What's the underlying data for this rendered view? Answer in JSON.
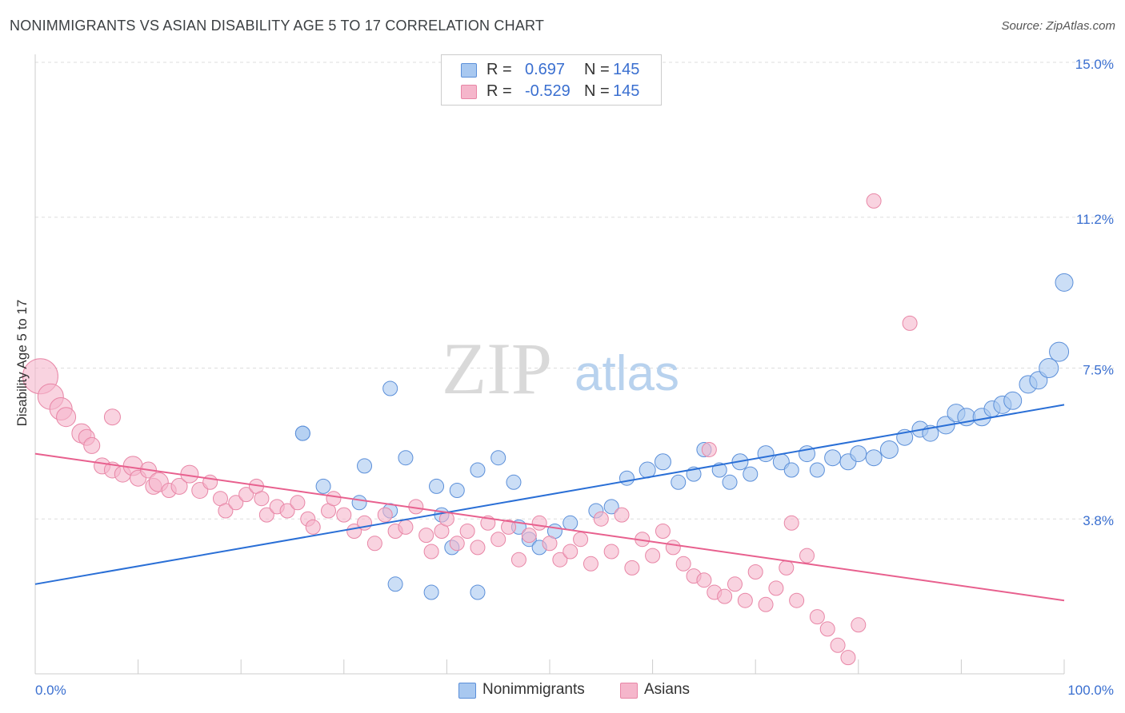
{
  "title": "NONIMMIGRANTS VS ASIAN DISABILITY AGE 5 TO 17 CORRELATION CHART",
  "source": "Source: ZipAtlas.com",
  "watermark": {
    "zip": "ZIP",
    "atlas": "atlas"
  },
  "colors": {
    "blue_fill": "#a8c8f0",
    "blue_stroke": "#5b8fd9",
    "blue_line": "#2a6fd6",
    "pink_fill": "#f5b6cb",
    "pink_stroke": "#e886a6",
    "pink_line": "#e8608e",
    "value_text": "#3a6fd0",
    "grid": "#dddddd"
  },
  "stats": [
    {
      "label": "R =",
      "r": "0.697",
      "n_label": "N =",
      "n": "145",
      "color": "#a8c8f0",
      "border": "#5b8fd9"
    },
    {
      "label": "R =",
      "r": "-0.529",
      "n_label": "N =",
      "n": "145",
      "color": "#f5b6cb",
      "border": "#e886a6"
    }
  ],
  "legend": [
    {
      "label": "Nonimmigrants",
      "color": "#a8c8f0",
      "border": "#5b8fd9"
    },
    {
      "label": "Asians",
      "color": "#f5b6cb",
      "border": "#e886a6"
    }
  ],
  "chart_data": {
    "type": "scatter",
    "title": "NONIMMIGRANTS VS ASIAN DISABILITY AGE 5 TO 17 CORRELATION CHART",
    "xlabel": "",
    "ylabel": "Disability Age 5 to 17",
    "xlim": [
      0,
      100
    ],
    "ylim": [
      0,
      15.0
    ],
    "x_tick_labels": [
      "0.0%",
      "100.0%"
    ],
    "y_ticks": [
      3.8,
      7.5,
      11.2,
      15.0
    ],
    "y_tick_labels": [
      "3.8%",
      "7.5%",
      "11.2%",
      "15.0%"
    ],
    "grid": true,
    "legend_position": "bottom-center",
    "series": [
      {
        "name": "Nonimmigrants",
        "trend": [
          [
            0,
            2.2
          ],
          [
            100,
            6.6
          ]
        ],
        "points": [
          [
            26,
            5.9,
            9
          ],
          [
            26,
            5.9,
            9
          ],
          [
            40.5,
            3.1,
            9
          ],
          [
            34.5,
            4.0,
            9
          ],
          [
            28,
            4.6,
            9
          ],
          [
            31.5,
            4.2,
            9
          ],
          [
            32,
            5.1,
            9
          ],
          [
            34.5,
            7.0,
            9
          ],
          [
            39.5,
            3.9,
            9
          ],
          [
            38.5,
            2.0,
            9
          ],
          [
            43,
            2.0,
            9
          ],
          [
            35,
            2.2,
            9
          ],
          [
            39,
            4.6,
            9
          ],
          [
            36,
            5.3,
            9
          ],
          [
            41,
            4.5,
            9
          ],
          [
            43,
            5.0,
            9
          ],
          [
            45,
            5.3,
            9
          ],
          [
            46.5,
            4.7,
            9
          ],
          [
            47,
            3.6,
            9
          ],
          [
            48,
            3.3,
            9
          ],
          [
            49,
            3.1,
            9
          ],
          [
            50.5,
            3.5,
            9
          ],
          [
            52,
            3.7,
            9
          ],
          [
            54.5,
            4.0,
            9
          ],
          [
            56,
            4.1,
            9
          ],
          [
            57.5,
            4.8,
            9
          ],
          [
            59.5,
            5.0,
            10
          ],
          [
            61,
            5.2,
            10
          ],
          [
            62.5,
            4.7,
            9
          ],
          [
            64,
            4.9,
            9
          ],
          [
            65,
            5.5,
            9
          ],
          [
            66.5,
            5.0,
            9
          ],
          [
            67.5,
            4.7,
            9
          ],
          [
            68.5,
            5.2,
            10
          ],
          [
            69.5,
            4.9,
            9
          ],
          [
            71,
            5.4,
            10
          ],
          [
            72.5,
            5.2,
            10
          ],
          [
            73.5,
            5.0,
            9
          ],
          [
            75,
            5.4,
            10
          ],
          [
            76,
            5.0,
            9
          ],
          [
            77.5,
            5.3,
            10
          ],
          [
            79,
            5.2,
            10
          ],
          [
            80,
            5.4,
            10
          ],
          [
            81.5,
            5.3,
            10
          ],
          [
            83,
            5.5,
            11
          ],
          [
            84.5,
            5.8,
            10
          ],
          [
            86,
            6.0,
            10
          ],
          [
            87,
            5.9,
            10
          ],
          [
            88.5,
            6.1,
            11
          ],
          [
            89.5,
            6.4,
            11
          ],
          [
            90.5,
            6.3,
            11
          ],
          [
            92,
            6.3,
            11
          ],
          [
            93,
            6.5,
            10
          ],
          [
            94,
            6.6,
            11
          ],
          [
            95,
            6.7,
            11
          ],
          [
            96.5,
            7.1,
            11
          ],
          [
            97.5,
            7.2,
            11
          ],
          [
            98.5,
            7.5,
            12
          ],
          [
            99.5,
            7.9,
            12
          ],
          [
            100,
            9.6,
            11
          ]
        ]
      },
      {
        "name": "Asians",
        "trend": [
          [
            0,
            5.4
          ],
          [
            100,
            1.8
          ]
        ],
        "points": [
          [
            0.5,
            7.3,
            22
          ],
          [
            1.5,
            6.8,
            16
          ],
          [
            2.5,
            6.5,
            14
          ],
          [
            3,
            6.3,
            12
          ],
          [
            4.5,
            5.9,
            12
          ],
          [
            5,
            5.8,
            10
          ],
          [
            5.5,
            5.6,
            10
          ],
          [
            7.5,
            6.3,
            10
          ],
          [
            6.5,
            5.1,
            10
          ],
          [
            7.5,
            5.0,
            10
          ],
          [
            8.5,
            4.9,
            10
          ],
          [
            9.5,
            5.1,
            12
          ],
          [
            10,
            4.8,
            10
          ],
          [
            11,
            5.0,
            10
          ],
          [
            11.5,
            4.6,
            10
          ],
          [
            12,
            4.7,
            12
          ],
          [
            13,
            4.5,
            9
          ],
          [
            14,
            4.6,
            10
          ],
          [
            15,
            4.9,
            11
          ],
          [
            16,
            4.5,
            10
          ],
          [
            17,
            4.7,
            9
          ],
          [
            18,
            4.3,
            9
          ],
          [
            18.5,
            4.0,
            9
          ],
          [
            19.5,
            4.2,
            9
          ],
          [
            20.5,
            4.4,
            9
          ],
          [
            21.5,
            4.6,
            9
          ],
          [
            22,
            4.3,
            9
          ],
          [
            22.5,
            3.9,
            9
          ],
          [
            23.5,
            4.1,
            9
          ],
          [
            24.5,
            4.0,
            9
          ],
          [
            25.5,
            4.2,
            9
          ],
          [
            26.5,
            3.8,
            9
          ],
          [
            27,
            3.6,
            9
          ],
          [
            28.5,
            4.0,
            9
          ],
          [
            29,
            4.3,
            9
          ],
          [
            30,
            3.9,
            9
          ],
          [
            31,
            3.5,
            9
          ],
          [
            32,
            3.7,
            9
          ],
          [
            33,
            3.2,
            9
          ],
          [
            34,
            3.9,
            9
          ],
          [
            35,
            3.5,
            9
          ],
          [
            36,
            3.6,
            9
          ],
          [
            37,
            4.1,
            9
          ],
          [
            38,
            3.4,
            9
          ],
          [
            38.5,
            3.0,
            9
          ],
          [
            39.5,
            3.5,
            9
          ],
          [
            40,
            3.8,
            9
          ],
          [
            41,
            3.2,
            9
          ],
          [
            42,
            3.5,
            9
          ],
          [
            43,
            3.1,
            9
          ],
          [
            44,
            3.7,
            9
          ],
          [
            45,
            3.3,
            9
          ],
          [
            46,
            3.6,
            9
          ],
          [
            47,
            2.8,
            9
          ],
          [
            48,
            3.4,
            9
          ],
          [
            49,
            3.7,
            9
          ],
          [
            50,
            3.2,
            9
          ],
          [
            51,
            2.8,
            9
          ],
          [
            52,
            3.0,
            9
          ],
          [
            53,
            3.3,
            9
          ],
          [
            54,
            2.7,
            9
          ],
          [
            55,
            3.8,
            9
          ],
          [
            56,
            3.0,
            9
          ],
          [
            57,
            3.9,
            9
          ],
          [
            58,
            2.6,
            9
          ],
          [
            59,
            3.3,
            9
          ],
          [
            60,
            2.9,
            9
          ],
          [
            61,
            3.5,
            9
          ],
          [
            62,
            3.1,
            9
          ],
          [
            63,
            2.7,
            9
          ],
          [
            64,
            2.4,
            9
          ],
          [
            65,
            2.3,
            9
          ],
          [
            66,
            2.0,
            9
          ],
          [
            67,
            1.9,
            9
          ],
          [
            68,
            2.2,
            9
          ],
          [
            69,
            1.8,
            9
          ],
          [
            70,
            2.5,
            9
          ],
          [
            71,
            1.7,
            9
          ],
          [
            72,
            2.1,
            9
          ],
          [
            73,
            2.6,
            9
          ],
          [
            74,
            1.8,
            9
          ],
          [
            75,
            2.9,
            9
          ],
          [
            76,
            1.4,
            9
          ],
          [
            77,
            1.1,
            9
          ],
          [
            78,
            0.7,
            9
          ],
          [
            79,
            0.4,
            9
          ],
          [
            80,
            1.2,
            9
          ],
          [
            81.5,
            11.6,
            9
          ],
          [
            85,
            8.6,
            9
          ],
          [
            73.5,
            3.7,
            9
          ],
          [
            65.5,
            5.5,
            9
          ]
        ]
      }
    ]
  }
}
